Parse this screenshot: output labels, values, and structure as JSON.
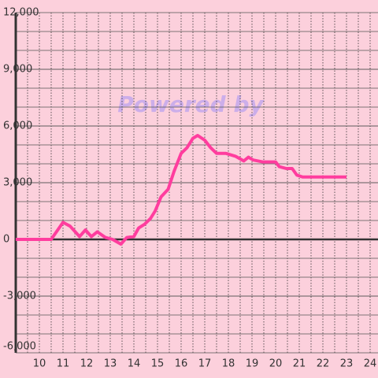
{
  "chart_data": {
    "type": "line",
    "watermark": "Powered by",
    "x": [
      9,
      10.5,
      11,
      11.3,
      11.7,
      11.95,
      12.2,
      12.45,
      12.8,
      13.1,
      13.45,
      13.7,
      14,
      14.2,
      14.45,
      14.7,
      14.9,
      15.15,
      15.45,
      15.7,
      16,
      16.25,
      16.5,
      16.7,
      17,
      17.25,
      17.5,
      17.9,
      18.3,
      18.65,
      18.85,
      19.05,
      19.45,
      20,
      20.15,
      20.45,
      20.7,
      20.9,
      21.15,
      23
    ],
    "series": [
      {
        "color": "#ff3d9e",
        "values": [
          0,
          0,
          900,
          700,
          150,
          500,
          150,
          400,
          100,
          0,
          -250,
          100,
          150,
          600,
          800,
          1100,
          1500,
          2250,
          2650,
          3600,
          4550,
          4850,
          5350,
          5500,
          5250,
          4850,
          4550,
          4550,
          4400,
          4150,
          4350,
          4200,
          4100,
          4100,
          3850,
          3750,
          3750,
          3400,
          3300,
          3300
        ]
      }
    ],
    "xlim": [
      9,
      24.3
    ],
    "xticks": [
      10,
      11,
      12,
      13,
      14,
      15,
      16,
      17,
      18,
      19,
      20,
      21,
      22,
      23,
      24
    ],
    "xgrid": [
      9.5,
      10,
      10.5,
      11,
      11.5,
      12,
      12.5,
      13,
      13.5,
      14,
      14.5,
      15,
      15.5,
      16,
      16.5,
      17,
      17.5,
      18,
      18.5,
      19,
      19.5,
      20,
      20.5,
      21,
      21.5,
      22,
      22.5,
      23,
      23.5,
      24
    ],
    "ylim": [
      -6000,
      12000
    ],
    "yticks": [
      {
        "value": 12000,
        "label": "12,000"
      },
      {
        "value": 9000,
        "label": "9,000"
      },
      {
        "value": 6000,
        "label": "6,000"
      },
      {
        "value": 3000,
        "label": "3,000"
      },
      0,
      {
        "value": -3000,
        "label": "-3,000"
      },
      {
        "value": -6000,
        "label": "-6,000"
      }
    ],
    "ygrid": [
      11000,
      10000,
      9000,
      8000,
      7000,
      6000,
      5000,
      4000,
      3000,
      2000,
      1000,
      -1000,
      -2000,
      -3000,
      -4000,
      -5000
    ]
  }
}
